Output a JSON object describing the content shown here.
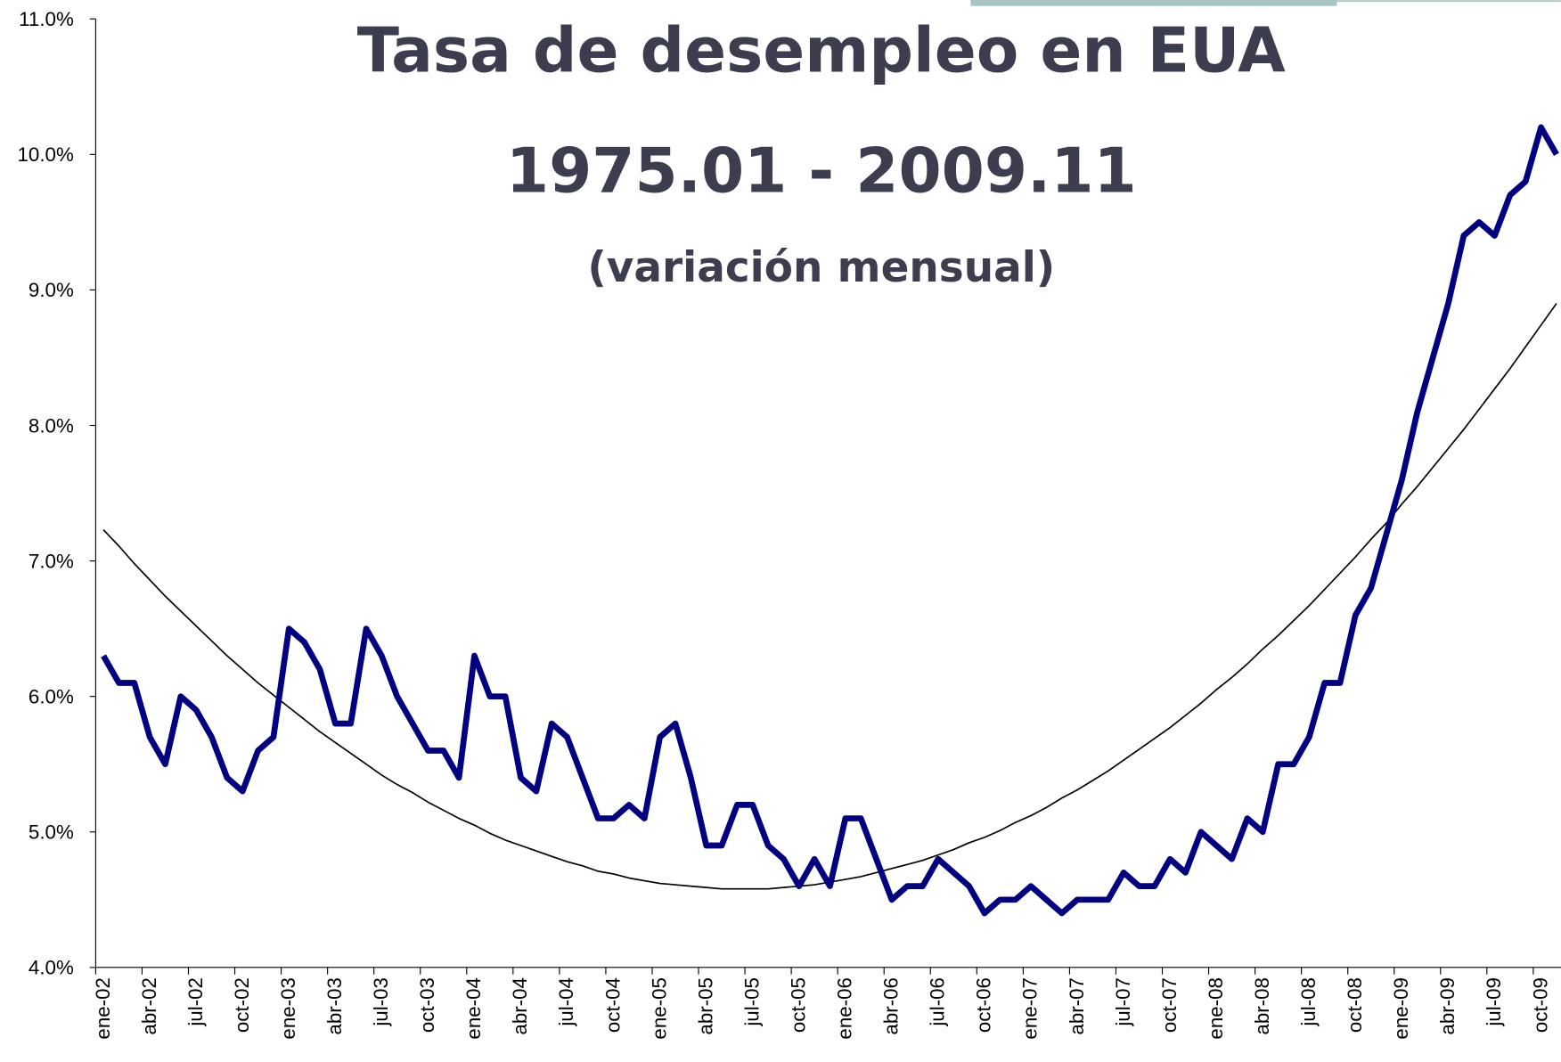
{
  "chart_data": {
    "type": "line",
    "title": "Tasa de desempleo en EUA",
    "subtitle": "1975.01 - 2009.11",
    "note": "(variación mensual)",
    "categories": [
      "ene-02",
      null,
      null,
      "abr-02",
      null,
      null,
      "jul-02",
      null,
      null,
      "oct-02",
      null,
      null,
      "ene-03",
      null,
      null,
      "abr-03",
      null,
      null,
      "jul-03",
      null,
      null,
      "oct-03",
      null,
      null,
      "ene-04",
      null,
      null,
      "abr-04",
      null,
      null,
      "jul-04",
      null,
      null,
      "oct-04",
      null,
      null,
      "ene-05",
      null,
      null,
      "abr-05",
      null,
      null,
      "jul-05",
      null,
      null,
      "oct-05",
      null,
      null,
      "ene-06",
      null,
      null,
      "abr-06",
      null,
      null,
      "jul-06",
      null,
      null,
      "oct-06",
      null,
      null,
      "ene-07",
      null,
      null,
      "abr-07",
      null,
      null,
      "jul-07",
      null,
      null,
      "oct-07",
      null,
      null,
      "ene-08",
      null,
      null,
      "abr-08",
      null,
      null,
      "jul-08",
      null,
      null,
      "oct-08",
      null,
      null,
      "ene-09",
      null,
      null,
      "abr-09",
      null,
      null,
      "jul-09",
      null,
      null,
      "oct-09",
      null
    ],
    "series": [
      {
        "color": "#000080",
        "width": 6,
        "values": [
          6.3,
          6.1,
          6.1,
          5.7,
          5.5,
          6.0,
          5.9,
          5.7,
          5.4,
          5.3,
          5.6,
          5.7,
          6.5,
          6.4,
          6.2,
          5.8,
          5.8,
          6.5,
          6.3,
          6.0,
          5.8,
          5.6,
          5.6,
          5.4,
          6.3,
          6.0,
          6.0,
          5.4,
          5.3,
          5.8,
          5.7,
          5.4,
          5.1,
          5.1,
          5.2,
          5.1,
          5.7,
          5.8,
          5.4,
          4.9,
          4.9,
          5.2,
          5.2,
          4.9,
          4.8,
          4.6,
          4.8,
          4.6,
          5.1,
          5.1,
          4.8,
          4.5,
          4.6,
          4.6,
          4.8,
          4.7,
          4.6,
          4.4,
          4.5,
          4.5,
          4.6,
          4.5,
          4.4,
          4.5,
          4.5,
          4.5,
          4.7,
          4.6,
          4.6,
          4.8,
          4.7,
          5.0,
          4.9,
          4.8,
          5.1,
          5.0,
          5.5,
          5.5,
          5.7,
          6.1,
          6.1,
          6.6,
          6.8,
          7.2,
          7.6,
          8.1,
          8.5,
          8.9,
          9.4,
          9.5,
          9.4,
          9.7,
          9.8,
          10.2,
          10.0
        ]
      },
      {
        "color": "#000000",
        "width": 1.5,
        "values": [
          7.23,
          7.11,
          6.98,
          6.86,
          6.74,
          6.63,
          6.52,
          6.41,
          6.3,
          6.2,
          6.1,
          6.01,
          5.92,
          5.83,
          5.74,
          5.66,
          5.58,
          5.5,
          5.42,
          5.35,
          5.29,
          5.22,
          5.16,
          5.1,
          5.05,
          4.99,
          4.94,
          4.9,
          4.86,
          4.82,
          4.78,
          4.75,
          4.71,
          4.69,
          4.66,
          4.64,
          4.62,
          4.61,
          4.6,
          4.59,
          4.58,
          4.58,
          4.58,
          4.58,
          4.59,
          4.6,
          4.61,
          4.63,
          4.65,
          4.67,
          4.7,
          4.73,
          4.76,
          4.79,
          4.83,
          4.87,
          4.92,
          4.96,
          5.01,
          5.07,
          5.12,
          5.18,
          5.25,
          5.31,
          5.38,
          5.45,
          5.53,
          5.61,
          5.69,
          5.77,
          5.86,
          5.95,
          6.05,
          6.14,
          6.24,
          6.35,
          6.45,
          6.56,
          6.67,
          6.79,
          6.91,
          7.03,
          7.16,
          7.28,
          7.42,
          7.55,
          7.69,
          7.83,
          7.97,
          8.12,
          8.27,
          8.42,
          8.58,
          8.74,
          8.9
        ]
      }
    ],
    "ylim": [
      4,
      11
    ],
    "yticks": [
      {
        "value": 4,
        "label": "4.0%"
      },
      {
        "value": 5,
        "label": "5.0%"
      },
      {
        "value": 6,
        "label": "6.0%"
      },
      {
        "value": 7,
        "label": "7.0%"
      },
      {
        "value": 8,
        "label": "8.0%"
      },
      {
        "value": 9,
        "label": "9.0%"
      },
      {
        "value": 10,
        "label": "10.0%"
      },
      {
        "value": 11,
        "label": "11.0%"
      }
    ],
    "grid": false
  }
}
